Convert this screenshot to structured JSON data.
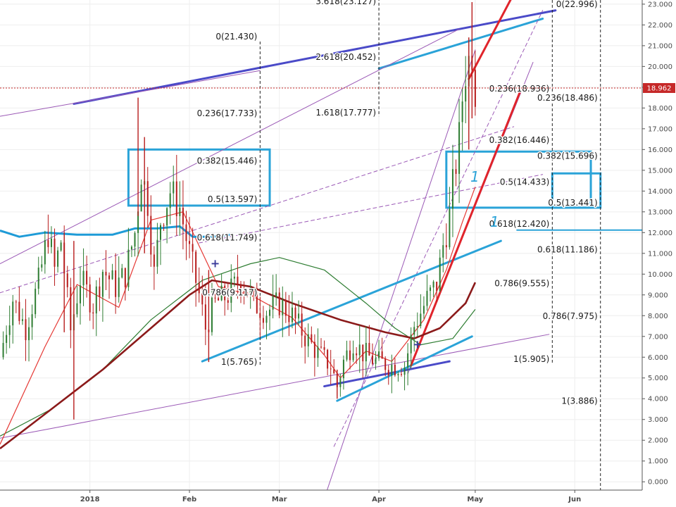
{
  "chart_data": {
    "type": "candlestick",
    "current_price": "18.962",
    "y_axis": {
      "range": [
        -0.4,
        23.2
      ],
      "ticks": [
        "0.000",
        "1.000",
        "2.000",
        "3.000",
        "4.000",
        "5.000",
        "6.000",
        "7.000",
        "8.000",
        "9.000",
        "10.000",
        "11.000",
        "12.000",
        "13.000",
        "14.000",
        "15.000",
        "16.000",
        "17.000",
        "18.000",
        "19.000",
        "20.000",
        "21.000",
        "22.000",
        "23.000"
      ]
    },
    "x_axis": {
      "ticks": [
        "2018",
        "Feb",
        "Mar",
        "Apr",
        "May",
        "Jun"
      ],
      "range": [
        "2017-12-04",
        "2018-06-22"
      ]
    },
    "grid": true,
    "annotations": [
      "1",
      "1"
    ],
    "fib_labels": [
      {
        "text": "3.618(23.127)",
        "value": 23.127,
        "anchor": "end",
        "date": "2018-04-01"
      },
      {
        "text": "2.618(20.452)",
        "value": 20.452,
        "anchor": "end",
        "date": "2018-04-01"
      },
      {
        "text": "1.618(17.777)",
        "value": 17.777,
        "anchor": "end",
        "date": "2018-04-01"
      },
      {
        "text": "0(21.430)",
        "value": 21.43,
        "anchor": "end",
        "date": "2018-02-23"
      },
      {
        "text": "0.236(17.733)",
        "value": 17.733,
        "anchor": "end",
        "date": "2018-02-23"
      },
      {
        "text": "0.382(15.446)",
        "value": 15.446,
        "anchor": "end",
        "date": "2018-02-23"
      },
      {
        "text": "0.5(13.597)",
        "value": 13.597,
        "anchor": "end",
        "date": "2018-02-23"
      },
      {
        "text": "0.618(11.749)",
        "value": 11.749,
        "anchor": "end",
        "date": "2018-02-23"
      },
      {
        "text": "0.786(9.117)",
        "value": 9.117,
        "anchor": "end",
        "date": "2018-02-23"
      },
      {
        "text": "1(5.765)",
        "value": 5.765,
        "anchor": "end",
        "date": "2018-02-23"
      },
      {
        "text": "0(22.996)",
        "value": 22.996,
        "anchor": "end",
        "date": "2018-06-09"
      },
      {
        "text": "0.236(18.936)",
        "value": 18.936,
        "anchor": "end",
        "date": "2018-05-25"
      },
      {
        "text": "0.236(18.486)",
        "value": 18.486,
        "anchor": "end",
        "date": "2018-06-09"
      },
      {
        "text": "0.382(16.446)",
        "value": 16.446,
        "anchor": "end",
        "date": "2018-05-25"
      },
      {
        "text": "0.382(15.696)",
        "value": 15.696,
        "anchor": "end",
        "date": "2018-06-09"
      },
      {
        "text": "0.5(14.433)",
        "value": 14.433,
        "anchor": "end",
        "date": "2018-05-25"
      },
      {
        "text": "0.5(13.441)",
        "value": 13.441,
        "anchor": "end",
        "date": "2018-06-09"
      },
      {
        "text": "0.618(12.420)",
        "value": 12.42,
        "anchor": "end",
        "date": "2018-05-25"
      },
      {
        "text": "0.618(11.186)",
        "value": 11.186,
        "anchor": "end",
        "date": "2018-06-09"
      },
      {
        "text": "0.786(9.555)",
        "value": 9.555,
        "anchor": "end",
        "date": "2018-05-25"
      },
      {
        "text": "0.786(7.975)",
        "value": 7.975,
        "anchor": "end",
        "date": "2018-06-09"
      },
      {
        "text": "1(5.905)",
        "value": 5.905,
        "anchor": "end",
        "date": "2018-05-25"
      },
      {
        "text": "1(3.886)",
        "value": 3.886,
        "anchor": "end",
        "date": "2018-06-09"
      }
    ],
    "candle_path": [
      [
        "2017-12-04",
        6.0
      ],
      [
        "2017-12-08",
        8.8
      ],
      [
        "2017-12-12",
        7.4
      ],
      [
        "2017-12-16",
        9.6
      ],
      [
        "2017-12-19",
        12.0
      ],
      [
        "2017-12-21",
        10.2
      ],
      [
        "2017-12-23",
        11.6
      ],
      [
        "2017-12-26",
        7.3
      ],
      [
        "2017-12-29",
        9.8
      ],
      [
        "2018-01-02",
        8.5
      ],
      [
        "2018-01-05",
        10.2
      ],
      [
        "2018-01-09",
        9.4
      ],
      [
        "2018-01-12",
        10.0
      ],
      [
        "2018-01-15",
        12.0
      ],
      [
        "2018-01-17",
        15.0
      ],
      [
        "2018-01-19",
        13.5
      ],
      [
        "2018-01-21",
        10.0
      ],
      [
        "2018-01-23",
        12.6
      ],
      [
        "2018-01-26",
        14.0
      ],
      [
        "2018-01-29",
        13.2
      ],
      [
        "2018-02-01",
        11.0
      ],
      [
        "2018-02-04",
        9.0
      ],
      [
        "2018-02-06",
        7.4
      ],
      [
        "2018-02-09",
        8.6
      ],
      [
        "2018-02-13",
        9.0
      ],
      [
        "2018-02-17",
        9.8
      ],
      [
        "2018-02-21",
        8.6
      ],
      [
        "2018-02-25",
        8.2
      ],
      [
        "2018-03-01",
        8.6
      ],
      [
        "2018-03-05",
        8.0
      ],
      [
        "2018-03-09",
        7.0
      ],
      [
        "2018-03-13",
        6.2
      ],
      [
        "2018-03-17",
        5.6
      ],
      [
        "2018-03-19",
        4.6
      ],
      [
        "2018-03-21",
        5.8
      ],
      [
        "2018-03-24",
        6.8
      ],
      [
        "2018-03-27",
        6.2
      ],
      [
        "2018-03-31",
        5.8
      ],
      [
        "2018-04-05",
        5.6
      ],
      [
        "2018-04-09",
        5.6
      ],
      [
        "2018-04-12",
        7.5
      ],
      [
        "2018-04-16",
        8.8
      ],
      [
        "2018-04-19",
        9.5
      ],
      [
        "2018-04-21",
        11.4
      ],
      [
        "2018-04-23",
        12.8
      ],
      [
        "2018-04-24",
        14.2
      ],
      [
        "2018-04-26",
        16.5
      ],
      [
        "2018-04-27",
        18.5
      ],
      [
        "2018-04-28",
        19.8
      ],
      [
        "2018-04-30",
        20.8
      ],
      [
        "2018-05-01",
        18.962
      ]
    ],
    "candle_wicks": [
      {
        "date": "2017-12-24",
        "low": 7.2,
        "high": 12.0
      },
      {
        "date": "2017-12-27",
        "low": 3.0,
        "high": 11.6
      },
      {
        "date": "2018-01-16",
        "low": 12.8,
        "high": 18.5
      },
      {
        "date": "2018-01-18",
        "low": 11.0,
        "high": 16.6
      },
      {
        "date": "2018-02-07",
        "low": 5.765,
        "high": 10.2
      },
      {
        "date": "2018-03-19",
        "low": 4.0,
        "high": 5.4
      },
      {
        "date": "2018-04-29",
        "low": 16.0,
        "high": 21.4
      },
      {
        "date": "2018-04-30",
        "low": 17.5,
        "high": 23.1
      }
    ],
    "series": [
      {
        "color": "#e53935",
        "points": [
          [
            "2017-12-04",
            1.8
          ],
          [
            "2017-12-18",
            6.5
          ],
          [
            "2017-12-28",
            9.5
          ],
          [
            "2018-01-10",
            8.4
          ],
          [
            "2018-01-20",
            12.6
          ],
          [
            "2018-01-30",
            13.0
          ],
          [
            "2018-02-10",
            9.4
          ],
          [
            "2018-02-20",
            9.0
          ],
          [
            "2018-03-05",
            7.9
          ],
          [
            "2018-03-15",
            6.1
          ],
          [
            "2018-03-20",
            5.0
          ],
          [
            "2018-03-28",
            6.3
          ],
          [
            "2018-04-05",
            5.8
          ],
          [
            "2018-04-15",
            7.8
          ],
          [
            "2018-04-22",
            10.2
          ],
          [
            "2018-04-27",
            12.5
          ],
          [
            "2018-05-01",
            14.2
          ]
        ]
      },
      {
        "color": "#2e7d32",
        "points": [
          [
            "2017-12-04",
            2.2
          ],
          [
            "2017-12-20",
            3.5
          ],
          [
            "2018-01-05",
            5.4
          ],
          [
            "2018-01-20",
            7.8
          ],
          [
            "2018-02-05",
            9.7
          ],
          [
            "2018-02-20",
            10.5
          ],
          [
            "2018-03-01",
            10.8
          ],
          [
            "2018-03-15",
            10.2
          ],
          [
            "2018-03-28",
            8.6
          ],
          [
            "2018-04-06",
            7.4
          ],
          [
            "2018-04-14",
            6.6
          ],
          [
            "2018-04-24",
            6.9
          ],
          [
            "2018-05-01",
            8.3
          ]
        ]
      },
      {
        "color": "#8b1a1a",
        "points": [
          [
            "2017-12-04",
            1.6
          ],
          [
            "2017-12-20",
            3.5
          ],
          [
            "2018-01-05",
            5.4
          ],
          [
            "2018-01-20",
            7.4
          ],
          [
            "2018-02-01",
            9.0
          ],
          [
            "2018-02-08",
            9.7
          ],
          [
            "2018-02-20",
            9.4
          ],
          [
            "2018-03-05",
            8.6
          ],
          [
            "2018-03-20",
            7.8
          ],
          [
            "2018-04-03",
            7.2
          ],
          [
            "2018-04-12",
            6.9
          ],
          [
            "2018-04-20",
            7.4
          ],
          [
            "2018-04-28",
            8.6
          ],
          [
            "2018-05-01",
            9.6
          ]
        ]
      }
    ],
    "trend_lines": [
      {
        "color": "#4a4ac8",
        "width": 3,
        "dash": "",
        "p1": [
          "2017-12-27",
          18.2
        ],
        "p2": [
          "2018-05-26",
          22.7
        ]
      },
      {
        "color": "#2aa3d8",
        "width": 3,
        "dash": "",
        "p1": [
          "2018-04-01",
          19.9
        ],
        "p2": [
          "2018-05-22",
          22.3
        ]
      },
      {
        "color": "#9b59b6",
        "width": 1,
        "dash": "",
        "p1": [
          "2017-12-04",
          2.1
        ],
        "p2": [
          "2018-05-24",
          7.1
        ]
      },
      {
        "color": "#9b59b6",
        "width": 1,
        "dash": "",
        "p1": [
          "2017-12-04",
          10.5
        ],
        "p2": [
          "2018-04-26",
          21.8
        ]
      },
      {
        "color": "#9b59b6",
        "width": 1,
        "dash": "",
        "p1": [
          "2017-12-04",
          17.6
        ],
        "p2": [
          "2018-02-23",
          19.8
        ]
      },
      {
        "color": "#9b59b6",
        "width": 1,
        "dash": "",
        "p1": [
          "2018-03-15",
          -0.8
        ],
        "p2": [
          "2018-05-01",
          20.8
        ]
      },
      {
        "color": "#9b59b6",
        "width": 1,
        "dash": "",
        "p1": [
          "2018-04-10",
          5.2
        ],
        "p2": [
          "2018-05-19",
          20.2
        ]
      },
      {
        "color": "#9b59b6",
        "width": 1,
        "dash": "5,4",
        "p1": [
          "2017-12-04",
          9.1
        ],
        "p2": [
          "2018-05-13",
          17.1
        ]
      },
      {
        "color": "#9b59b6",
        "width": 1,
        "dash": "5,4",
        "p1": [
          "2018-02-04",
          11.5
        ],
        "p2": [
          "2018-05-22",
          14.8
        ]
      },
      {
        "color": "#9b59b6",
        "width": 1,
        "dash": "5,4",
        "p1": [
          "2018-03-18",
          1.7
        ],
        "p2": [
          "2018-05-22",
          22.7
        ]
      },
      {
        "color": "#4a4ac8",
        "width": 3,
        "dash": "",
        "p1": [
          "2018-03-15",
          4.6
        ],
        "p2": [
          "2018-04-23",
          5.8
        ]
      },
      {
        "color": "#2aa3d8",
        "width": 3,
        "dash": "",
        "p1": [
          "2018-02-05",
          5.8
        ],
        "p2": [
          "2018-05-09",
          11.6
        ]
      },
      {
        "color": "#2aa3d8",
        "width": 3,
        "dash": "",
        "p1": [
          "2018-03-19",
          3.9
        ],
        "p2": [
          "2018-04-30",
          7.0
        ]
      },
      {
        "color": "#e0242b",
        "width": 3,
        "dash": "",
        "p1": [
          "2018-04-11",
          5.6
        ],
        "p2": [
          "2018-05-15",
          18.8
        ]
      },
      {
        "color": "#e0242b",
        "width": 3,
        "dash": "",
        "p1": [
          "2018-04-29",
          19.4
        ],
        "p2": [
          "2018-05-13",
          23.5
        ]
      },
      {
        "color": "#2aa3d8",
        "width": 2,
        "dash": "",
        "p1": [
          "2018-05-14",
          12.12
        ],
        "p2": [
          "2018-06-22",
          12.12
        ]
      }
    ],
    "boxes": [
      {
        "color": "#2aa3d8",
        "from": [
          "2018-01-13",
          16.0
        ],
        "to": [
          "2018-02-26",
          13.3
        ]
      },
      {
        "color": "#2aa3d8",
        "from": [
          "2018-04-22",
          15.9
        ],
        "to": [
          "2018-06-06",
          13.2
        ]
      },
      {
        "color": "#2aa3d8",
        "from": [
          "2018-05-25",
          14.85
        ],
        "to": [
          "2018-06-09",
          13.2
        ]
      }
    ],
    "fib_anchor_lines": [
      {
        "date": "2018-02-23",
        "from": 21.2,
        "to": 5.6
      },
      {
        "date": "2018-04-01",
        "from": 23.3,
        "to": 17.6
      },
      {
        "date": "2018-05-25",
        "from": 23.2,
        "to": 5.7
      },
      {
        "date": "2018-06-09",
        "from": 23.2,
        "to": -1.5
      }
    ],
    "ma_blue": [
      [
        "2017-12-04",
        12.1
      ],
      [
        "2017-12-10",
        11.8
      ],
      [
        "2017-12-18",
        12.0
      ],
      [
        "2017-12-28",
        11.9
      ],
      [
        "2018-01-08",
        11.9
      ],
      [
        "2018-01-15",
        12.2
      ],
      [
        "2018-01-22",
        12.2
      ],
      [
        "2018-01-29",
        12.3
      ],
      [
        "2018-02-02",
        11.8
      ],
      [
        "2018-02-08",
        11.8
      ],
      [
        "2018-02-14",
        11.9
      ]
    ],
    "markers": [
      [
        "2018-02-09",
        10.5
      ],
      [
        "2018-04-13",
        6.6
      ]
    ]
  }
}
